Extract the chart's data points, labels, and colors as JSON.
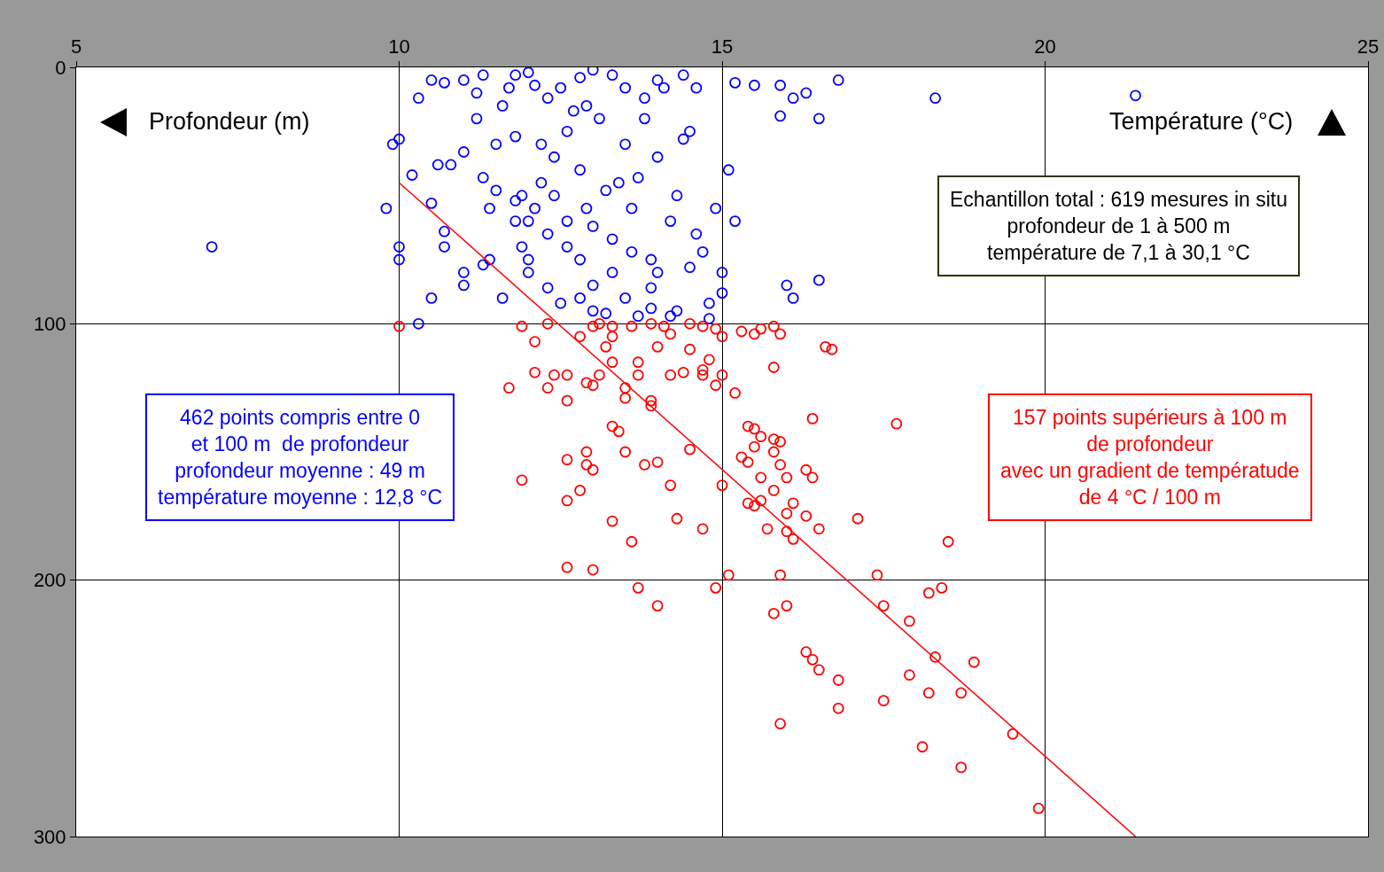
{
  "chart_data": {
    "type": "scatter",
    "xlabel": "Température (°C)",
    "ylabel": "Profondeur (m)",
    "xlim": [
      5,
      25
    ],
    "xticks": [
      5,
      10,
      15,
      20,
      25
    ],
    "ylim": [
      300,
      0
    ],
    "yticks": [
      0,
      100,
      200,
      300
    ],
    "grid": true,
    "marker": "circle",
    "annotations": [
      "462 points compris entre 0\net 100 m  de profondeur\nprofondeur moyenne : 49 m\ntempérature moyenne : 12,8 °C",
      "157 points supérieurs à 100 m\nde profondeur\navec un gradient de températude\nde 4 °C / 100 m",
      "Echantillon total : 619 mesures in situ\nprofondeur de 1 à 500 m\ntempérature de 7,1 à 30,1 °C"
    ],
    "series": [
      {
        "color": "#0000ff",
        "x": [
          7.1,
          9.8,
          9.9,
          10,
          10,
          10,
          10.2,
          10.3,
          10.3,
          10.5,
          10.7,
          10.7,
          10.5,
          10.5,
          10.6,
          10.8,
          10.7,
          11,
          11,
          11,
          11,
          11.2,
          11.2,
          11.3,
          11.3,
          11.4,
          11.4,
          11.5,
          11.5,
          11.6,
          11.8,
          11.8,
          11.9,
          12,
          12,
          12,
          12.2,
          12.2,
          12.3,
          12.3,
          12.5,
          12.6,
          12.6,
          12.8,
          12.8,
          12.8,
          12.9,
          13,
          13,
          13.1,
          13.2,
          13.3,
          13.5,
          13.5,
          13.5,
          13.6,
          13.7,
          13.8,
          13.9,
          14,
          14,
          14.1,
          14.2,
          14.3,
          14.4,
          14.5,
          14.6,
          14.8,
          14.8,
          14.9,
          15,
          15,
          15.1,
          15.2,
          15.2,
          15.5,
          15.9,
          15.9,
          16,
          16.1,
          16.1,
          16.3,
          16.5,
          16.5,
          16.8,
          18.3,
          21.4,
          14.4,
          14.5,
          14.3,
          13.7,
          13.9,
          14.2,
          13.2,
          12.8,
          12.3,
          12,
          11.9,
          12.1,
          11.8,
          12.6,
          13,
          13.4,
          13.6,
          12.4,
          12.9,
          13.3,
          12.1,
          11.6,
          11.7,
          11.3,
          12.7,
          13.8,
          14,
          14.6,
          13.9,
          14.7,
          13.3,
          12.4,
          11.8,
          12.5,
          13
        ],
        "values": [
          70,
          55,
          30,
          28,
          70,
          75,
          42,
          12,
          100,
          5,
          64,
          70,
          53,
          90,
          38,
          38,
          6,
          5,
          33,
          80,
          85,
          10,
          20,
          43,
          77,
          55,
          75,
          30,
          48,
          90,
          3,
          27,
          50,
          2,
          60,
          80,
          30,
          45,
          65,
          12,
          8,
          60,
          25,
          40,
          4,
          75,
          55,
          1,
          85,
          20,
          48,
          67,
          8,
          30,
          90,
          55,
          43,
          20,
          75,
          35,
          80,
          8,
          60,
          50,
          3,
          25,
          65,
          92,
          98,
          55,
          80,
          88,
          40,
          60,
          6,
          7,
          7,
          19,
          85,
          90,
          12,
          10,
          20,
          83,
          5,
          12,
          11,
          28,
          78,
          95,
          97,
          94,
          97,
          96,
          90,
          86,
          75,
          70,
          55,
          60,
          70,
          62,
          45,
          72,
          35,
          15,
          3,
          7,
          15,
          8,
          3,
          17,
          12,
          5,
          8,
          86,
          72,
          80,
          50,
          52,
          92,
          95
        ]
      },
      {
        "color": "#ff0000",
        "x": [
          10,
          11.9,
          12.3,
          12.1,
          11.7,
          12.1,
          12.3,
          12.4,
          12.6,
          12.6,
          12.8,
          12.9,
          13,
          13.1,
          13.2,
          13.3,
          13.3,
          13.5,
          13.5,
          13.7,
          13.7,
          13.9,
          13.9,
          14,
          14.2,
          14.4,
          14.5,
          14.7,
          14.7,
          14.8,
          14.9,
          15,
          15,
          15.2,
          15.3,
          15.5,
          15.6,
          15.8,
          15.9,
          15.8,
          16.6,
          16.7,
          17.7,
          16.4,
          15.4,
          15.5,
          15.6,
          15.8,
          15.9,
          15.8,
          15.5,
          15.3,
          15.4,
          15.9,
          15.6,
          16,
          16.3,
          16.4,
          15.8,
          15.4,
          15.5,
          15.6,
          16.1,
          16,
          16.3,
          17.1,
          15.7,
          16,
          16.1,
          16.5,
          18.5,
          13.3,
          13.4,
          13.5,
          13.8,
          14,
          14.5,
          15,
          14.2,
          12.9,
          12.6,
          12.9,
          13,
          11.9,
          12.8,
          12.6,
          14.3,
          14.7,
          13.3,
          13.6,
          12.6,
          13,
          13.7,
          14,
          14.9,
          15.1,
          15.9,
          17.4,
          15.8,
          16,
          17.5,
          17.9,
          18.2,
          18.4,
          16.3,
          16.4,
          16.5,
          18.3,
          18.9,
          16.8,
          17.9,
          16.8,
          17.5,
          18.2,
          18.7,
          15.9,
          19.5,
          18.1,
          18.7,
          19.9,
          13,
          13.1,
          13.3,
          13.6,
          13.9,
          14.1,
          14.2,
          14.5,
          14.7,
          14.9
        ],
        "values": [
          101,
          101,
          100,
          107,
          125,
          119,
          125,
          120,
          120,
          130,
          105,
          123,
          124,
          120,
          109,
          115,
          105,
          125,
          129,
          115,
          120,
          130,
          132,
          109,
          120,
          119,
          110,
          118,
          120,
          114,
          124,
          120,
          105,
          127,
          103,
          104,
          102,
          101,
          104,
          117,
          109,
          110,
          139,
          137,
          140,
          141,
          144,
          145,
          146,
          150,
          148,
          152,
          154,
          155,
          160,
          160,
          157,
          160,
          165,
          170,
          171,
          169,
          170,
          174,
          175,
          176,
          180,
          181,
          184,
          180,
          185,
          140,
          142,
          150,
          155,
          154,
          149,
          163,
          163,
          150,
          153,
          155,
          157,
          161,
          165,
          169,
          176,
          180,
          177,
          185,
          195,
          196,
          203,
          210,
          203,
          198,
          198,
          198,
          213,
          210,
          210,
          216,
          205,
          203,
          228,
          231,
          235,
          230,
          232,
          239,
          237,
          250,
          247,
          244,
          244,
          256,
          260,
          265,
          273,
          289,
          101,
          100,
          101,
          101,
          100,
          101,
          104,
          100,
          101,
          102
        ]
      },
      {
        "type": "line",
        "color": "#ff0000",
        "marker": "none",
        "x": [
          10,
          21.4
        ],
        "values": [
          45,
          300
        ]
      }
    ]
  }
}
